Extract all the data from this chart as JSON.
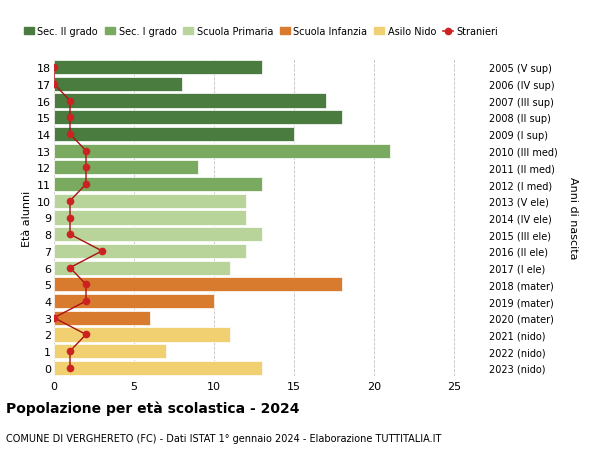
{
  "ages": [
    18,
    17,
    16,
    15,
    14,
    13,
    12,
    11,
    10,
    9,
    8,
    7,
    6,
    5,
    4,
    3,
    2,
    1,
    0
  ],
  "years_labels": [
    "2005 (V sup)",
    "2006 (IV sup)",
    "2007 (III sup)",
    "2008 (II sup)",
    "2009 (I sup)",
    "2010 (III med)",
    "2011 (II med)",
    "2012 (I med)",
    "2013 (V ele)",
    "2014 (IV ele)",
    "2015 (III ele)",
    "2016 (II ele)",
    "2017 (I ele)",
    "2018 (mater)",
    "2019 (mater)",
    "2020 (mater)",
    "2021 (nido)",
    "2022 (nido)",
    "2023 (nido)"
  ],
  "bar_values": [
    13,
    8,
    17,
    18,
    15,
    21,
    9,
    13,
    12,
    12,
    13,
    12,
    11,
    18,
    10,
    6,
    11,
    7,
    13
  ],
  "bar_colors": [
    "#4a7c3f",
    "#4a7c3f",
    "#4a7c3f",
    "#4a7c3f",
    "#4a7c3f",
    "#7aaa5f",
    "#7aaa5f",
    "#7aaa5f",
    "#b8d49a",
    "#b8d49a",
    "#b8d49a",
    "#b8d49a",
    "#b8d49a",
    "#d97b2e",
    "#d97b2e",
    "#d97b2e",
    "#f0d070",
    "#f0d070",
    "#f0d070"
  ],
  "stranieri_values": [
    0,
    0,
    1,
    1,
    1,
    2,
    2,
    2,
    1,
    1,
    1,
    3,
    1,
    2,
    2,
    0,
    2,
    1,
    1
  ],
  "legend_labels": [
    "Sec. II grado",
    "Sec. I grado",
    "Scuola Primaria",
    "Scuola Infanzia",
    "Asilo Nido",
    "Stranieri"
  ],
  "legend_colors": [
    "#4a7c3f",
    "#7aaa5f",
    "#b8d49a",
    "#d97b2e",
    "#f0d070",
    "#cc2222"
  ],
  "title": "Popolazione per età scolastica - 2024",
  "subtitle": "COMUNE DI VERGHERETO (FC) - Dati ISTAT 1° gennaio 2024 - Elaborazione TUTTITALIA.IT",
  "ylabel_left": "Età alunni",
  "ylabel_right": "Anni di nascita",
  "xlim": [
    0,
    27
  ],
  "background_color": "#ffffff",
  "grid_color": "#bbbbbb"
}
